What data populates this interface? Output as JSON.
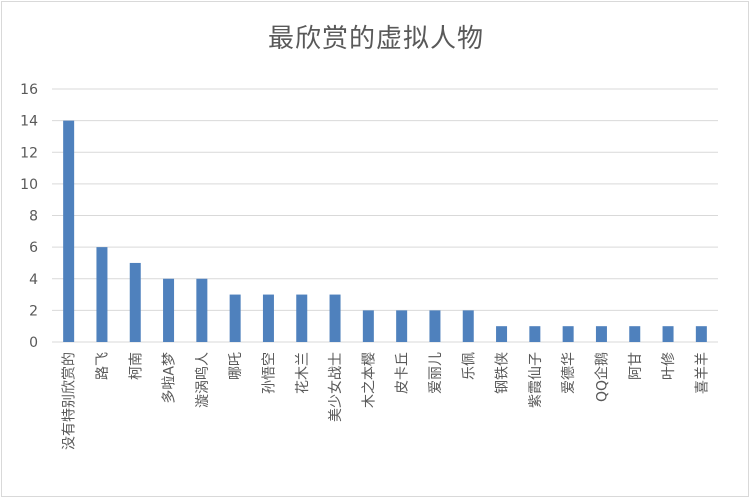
{
  "chart_data": {
    "type": "bar",
    "title": "最欣赏的虚拟人物",
    "xlabel": "",
    "ylabel": "",
    "ylim": [
      0,
      16
    ],
    "yticks": [
      0,
      2,
      4,
      6,
      8,
      10,
      12,
      14,
      16
    ],
    "grid": true,
    "legend": "none",
    "bar_color": "#4f81bd",
    "categories": [
      "没有特别欣赏的",
      "路飞",
      "柯南",
      "多啦A梦",
      "漩涡鸣人",
      "哪吒",
      "孙悟空",
      "花木兰",
      "美少女战士",
      "木之本樱",
      "皮卡丘",
      "爱丽儿",
      "乐佩",
      "钢铁侠",
      "紫霞仙子",
      "爱德华",
      "QQ企鹅",
      "阿甘",
      "叶修",
      "喜羊羊"
    ],
    "values": [
      14,
      6,
      5,
      4,
      4,
      3,
      3,
      3,
      3,
      2,
      2,
      2,
      2,
      1,
      1,
      1,
      1,
      1,
      1,
      1
    ]
  }
}
